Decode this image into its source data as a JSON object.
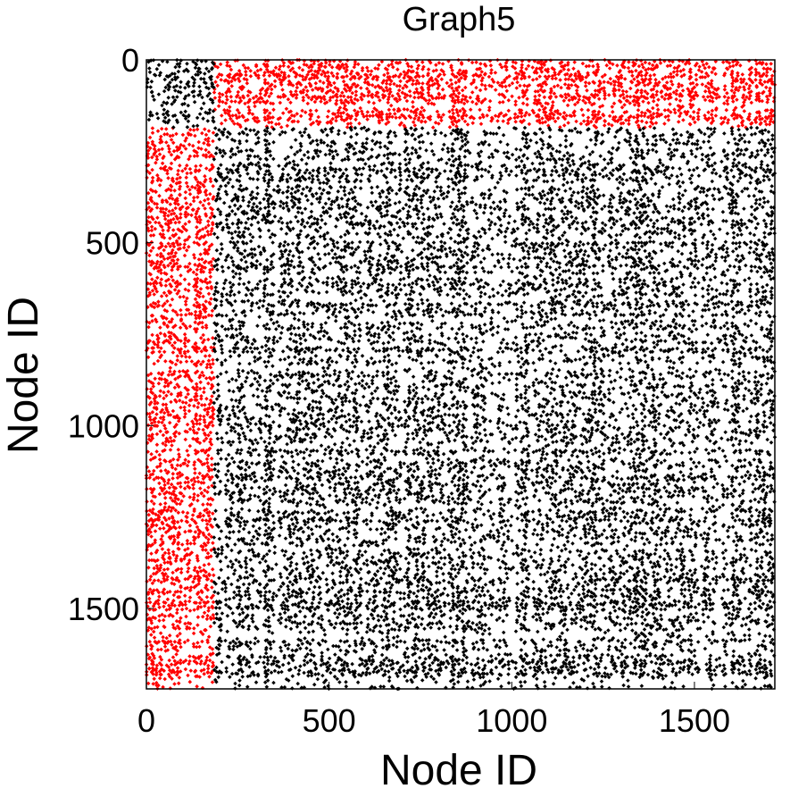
{
  "chart_data": {
    "type": "scatter",
    "title": "Graph5",
    "xlabel": "Node ID",
    "ylabel": "Node ID",
    "xlim": [
      0,
      1720
    ],
    "ylim": [
      0,
      1720
    ],
    "y_axis_inverted": true,
    "grid": false,
    "legend": "none",
    "x_ticks": [
      "0",
      "500",
      "1000",
      "1500"
    ],
    "y_ticks": [
      "0",
      "500",
      "1000",
      "1500"
    ],
    "x_tick_values": [
      0,
      500,
      1000,
      1500
    ],
    "y_tick_values": [
      0,
      500,
      1000,
      1500
    ],
    "series": [
      {
        "color": "#ff0000",
        "description_regions": [
          {
            "x": [
              0,
              185
            ],
            "y": [
              185,
              1720
            ],
            "density": 0.42
          },
          {
            "x": [
              185,
              1720
            ],
            "y": [
              0,
              185
            ],
            "density": 0.42
          }
        ]
      },
      {
        "color": "#000000",
        "description_regions": [
          {
            "x": [
              0,
              185
            ],
            "y": [
              0,
              185
            ],
            "density": 0.38
          },
          {
            "x": [
              185,
              1720
            ],
            "y": [
              185,
              1720
            ],
            "density": 0.3
          }
        ]
      }
    ],
    "block_boundary": 185
  }
}
